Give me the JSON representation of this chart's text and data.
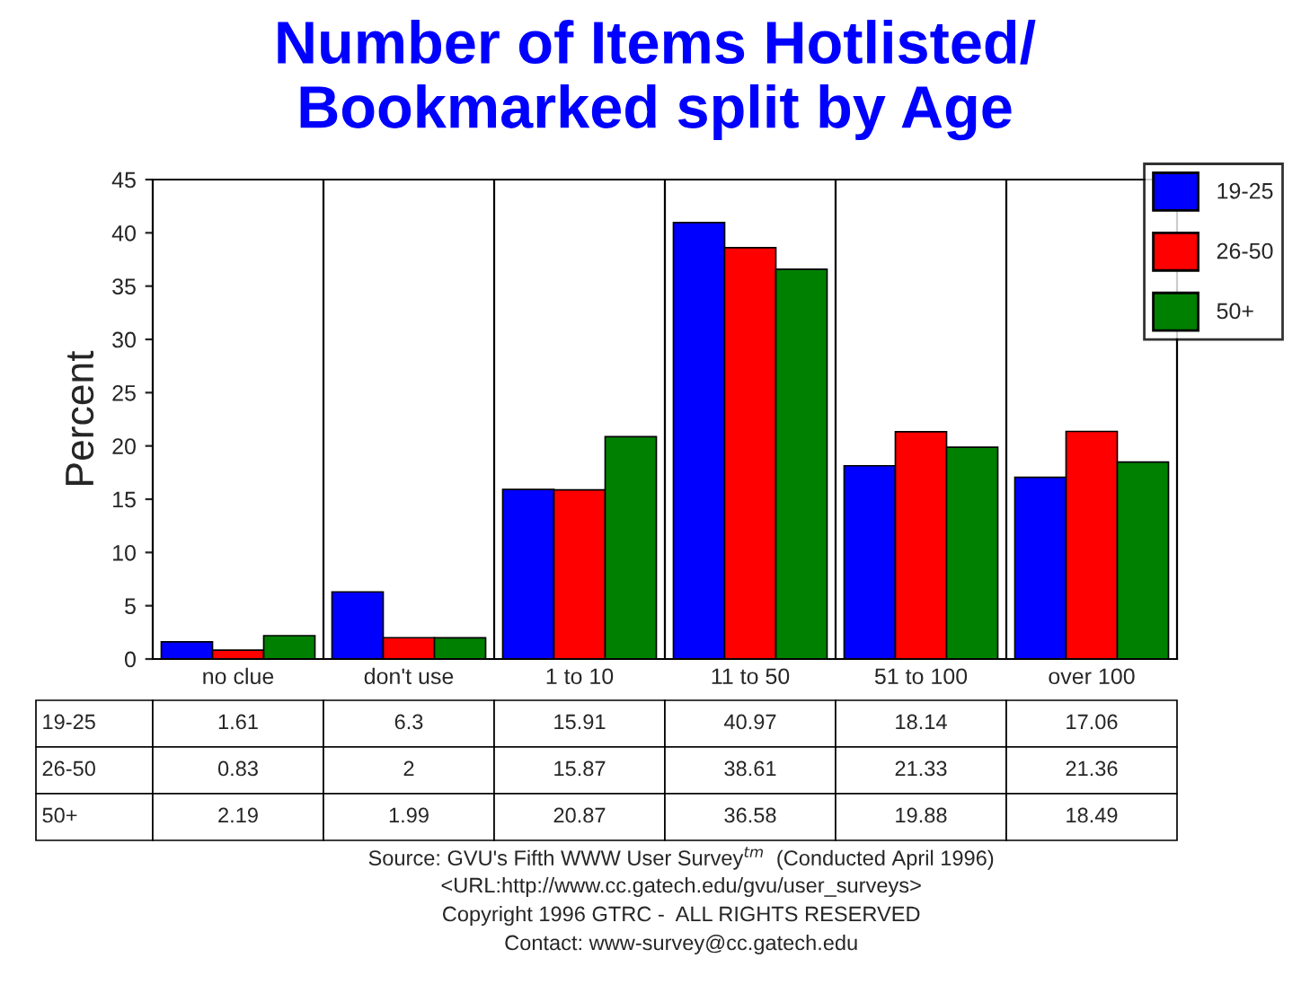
{
  "chart_data": {
    "type": "bar",
    "title": "Number of Items Hotlisted/\nBookmarked split by Age",
    "ylabel": "Percent",
    "categories": [
      "no clue",
      "don't use",
      "1 to 10",
      "11 to 50",
      "51 to 100",
      "over 100"
    ],
    "series": [
      {
        "name": "19-25",
        "color": "#0000ff",
        "values": [
          1.61,
          6.3,
          15.91,
          40.97,
          18.14,
          17.06
        ]
      },
      {
        "name": "26-50",
        "color": "#ff0000",
        "values": [
          0.83,
          2,
          15.87,
          38.61,
          21.33,
          21.36
        ]
      },
      {
        "name": "50+",
        "color": "#008000",
        "values": [
          2.19,
          1.99,
          20.87,
          36.58,
          19.88,
          18.49
        ]
      }
    ],
    "ylim": [
      0,
      45
    ],
    "yticks": [
      0,
      5,
      10,
      15,
      20,
      25,
      30,
      35,
      40,
      45
    ],
    "grid": "x",
    "legend": "top right",
    "data_labels": true,
    "annotations": [
      "Source: GVU's Fifth WWW User Survey$^{tm}$  (Conducted April 1996)",
      "<URL:http://www.cc.gatech.edu/gvu/user_surveys>",
      "Copyright 1996 GTRC -  ALL RIGHTS RESERVED",
      "Contact: www-survey@cc.gatech.edu"
    ]
  }
}
